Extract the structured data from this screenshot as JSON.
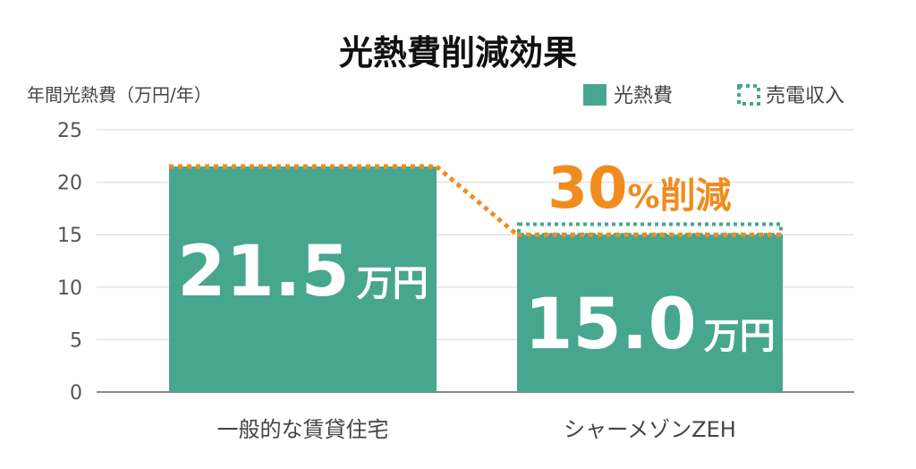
{
  "chart_data": {
    "type": "bar",
    "title": "光熱費削減効果",
    "ylabel": "年間光熱費（万円/年）",
    "ylim": [
      0,
      25
    ],
    "yticks": [
      0,
      5,
      10,
      15,
      20,
      25
    ],
    "grid": true,
    "legend_position": "top-right",
    "categories": [
      "一般的な賃貸住宅",
      "シャーメゾンZEH"
    ],
    "series": [
      {
        "name": "光熱費",
        "values": [
          21.5,
          15.0
        ],
        "color": "#46a68e"
      },
      {
        "name": "売電収入",
        "values": [
          0,
          1.0
        ],
        "color": "#46a68e",
        "style": "dotted"
      }
    ],
    "data_labels": [
      {
        "value": "21.5",
        "unit": "万円"
      },
      {
        "value": "15.0",
        "unit": "万円"
      }
    ],
    "annotation": {
      "number": "30",
      "percent": "%",
      "text": "削減",
      "color": "#f08c1e"
    },
    "bar_color": "#46a68e",
    "connector_color": "#f08c1e"
  }
}
